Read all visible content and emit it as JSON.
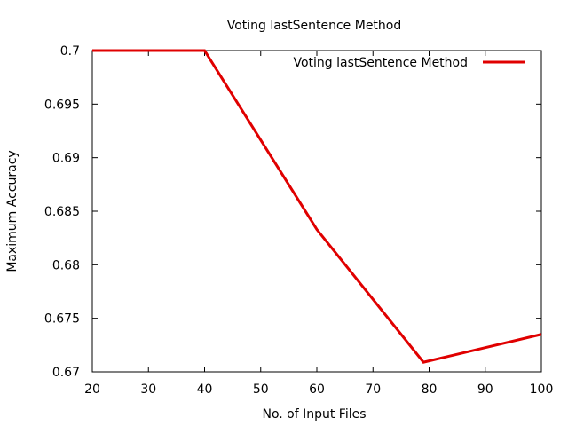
{
  "chart_data": {
    "type": "line",
    "title": "Voting lastSentence Method",
    "xlabel": "No. of Input Files",
    "ylabel": "Maximum Accuracy",
    "xlim": [
      20,
      100
    ],
    "ylim": [
      0.67,
      0.7
    ],
    "x_ticks": [
      "20",
      "30",
      "40",
      "50",
      "60",
      "70",
      "80",
      "90",
      "100"
    ],
    "y_ticks": [
      "0.67",
      "0.675",
      "0.68",
      "0.685",
      "0.69",
      "0.695",
      "0.7"
    ],
    "grid": false,
    "legend_position": "top-right",
    "series": [
      {
        "name": "Voting lastSentence Method",
        "color": "#e00000",
        "x": [
          20,
          40,
          60,
          79,
          100
        ],
        "y": [
          0.7,
          0.7,
          0.6833,
          0.6709,
          0.6735
        ]
      }
    ]
  }
}
